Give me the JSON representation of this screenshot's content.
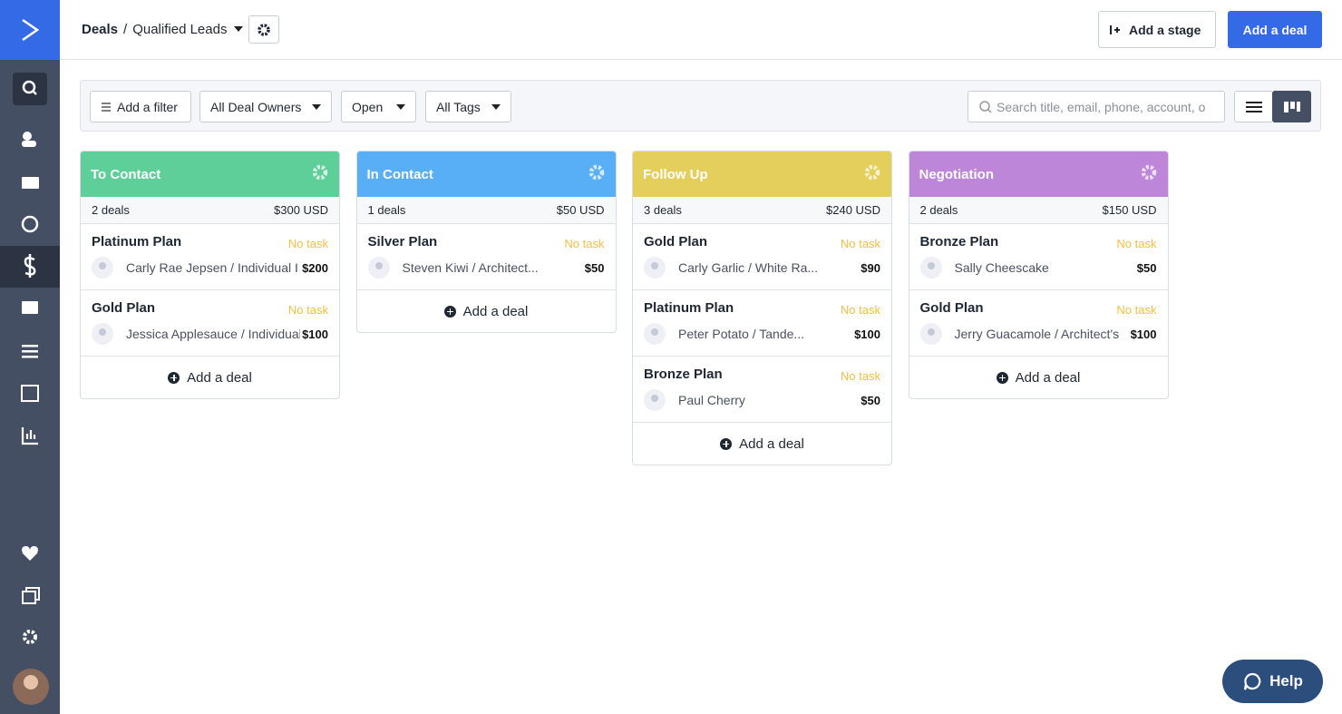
{
  "breadcrumb": {
    "root": "Deals",
    "separator": "/",
    "pipeline": "Qualified Leads"
  },
  "actions": {
    "add_stage": "Add a stage",
    "add_deal": "Add a deal"
  },
  "filters": {
    "add_filter": "Add a filter",
    "owners": "All Deal Owners",
    "status": "Open",
    "tags": "All Tags",
    "search_placeholder": "Search title, email, phone, account, o"
  },
  "stages": [
    {
      "name": "To Contact",
      "color": "#5ecf99",
      "count": "2 deals",
      "total": "$300 USD",
      "add": "Add a deal",
      "deals": [
        {
          "title": "Platinum Plan",
          "task": "No task",
          "contact": "Carly Rae Jepsen / Individual I",
          "value": "$200"
        },
        {
          "title": "Gold Plan",
          "task": "No task",
          "contact": "Jessica Applesauce / Individual",
          "value": "$100"
        }
      ]
    },
    {
      "name": "In Contact",
      "color": "#59aff5",
      "count": "1 deals",
      "total": "$50 USD",
      "add": "Add a deal",
      "deals": [
        {
          "title": "Silver Plan",
          "task": "No task",
          "contact": "Steven Kiwi / Architect...",
          "value": "$50"
        }
      ]
    },
    {
      "name": "Follow Up",
      "color": "#e5cf5c",
      "count": "3 deals",
      "total": "$240 USD",
      "add": "Add a deal",
      "deals": [
        {
          "title": "Gold Plan",
          "task": "No task",
          "contact": "Carly Garlic / White Ra...",
          "value": "$90"
        },
        {
          "title": "Platinum Plan",
          "task": "No task",
          "contact": "Peter Potato / Tande...",
          "value": "$100"
        },
        {
          "title": "Bronze Plan",
          "task": "No task",
          "contact": "Paul Cherry",
          "value": "$50"
        }
      ]
    },
    {
      "name": "Negotiation",
      "color": "#bd86d9",
      "count": "2 deals",
      "total": "$150 USD",
      "add": "Add a deal",
      "deals": [
        {
          "title": "Bronze Plan",
          "task": "No task",
          "contact": "Sally Cheescake",
          "value": "$50"
        },
        {
          "title": "Gold Plan",
          "task": "No task",
          "contact": "Jerry Guacamole / Architect's",
          "value": "$100"
        }
      ]
    }
  ],
  "help": "Help"
}
